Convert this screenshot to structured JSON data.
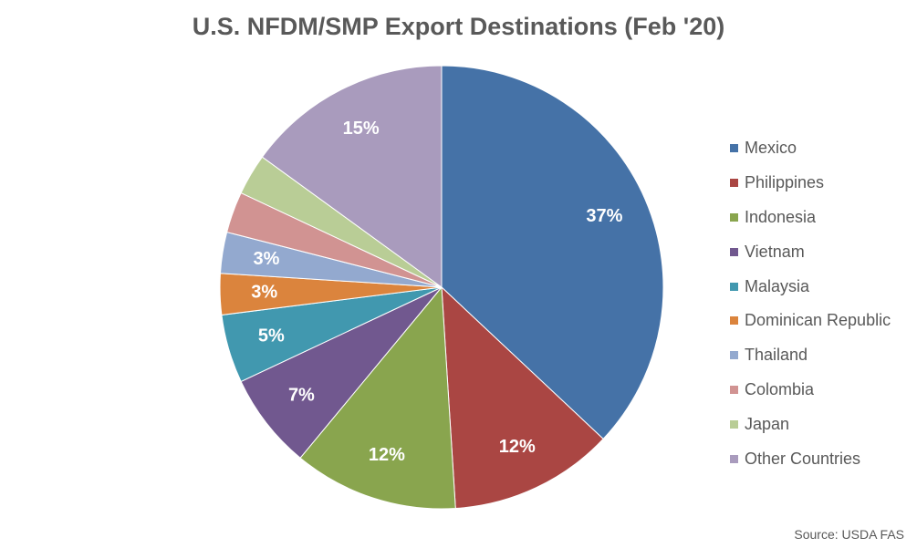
{
  "chart_data": {
    "type": "pie",
    "title": "U.S. NFDM/SMP Export Destinations (Feb '20)",
    "categories": [
      "Mexico",
      "Philippines",
      "Indonesia",
      "Vietnam",
      "Malaysia",
      "Dominican Republic",
      "Thailand",
      "Colombia",
      "Japan",
      "Other Countries"
    ],
    "values": [
      37,
      12,
      12,
      7,
      5,
      3,
      3,
      3,
      3,
      15
    ],
    "data_labels": [
      "37%",
      "12%",
      "12%",
      "7%",
      "5%",
      "3%",
      "3%",
      "",
      "",
      "15%"
    ],
    "colors": [
      "#4572A7",
      "#AA4643",
      "#89A54E",
      "#71588F",
      "#4198AF",
      "#DB843D",
      "#93A9CF",
      "#D19392",
      "#B9CD96",
      "#A99BBD"
    ],
    "legend_position": "right",
    "source": "Source: USDA FAS"
  }
}
